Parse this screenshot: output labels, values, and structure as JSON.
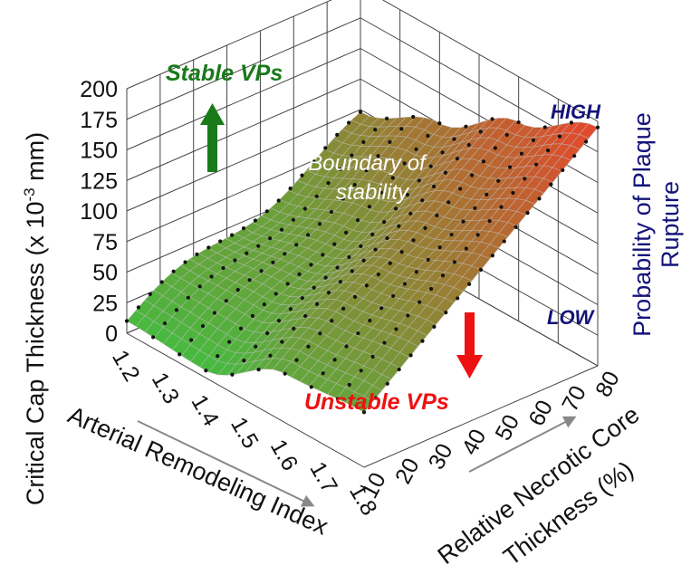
{
  "chart_data": {
    "type": "surface",
    "z_axis": {
      "label_main": "Critical Cap Thickness (x 10",
      "label_exp": "-3",
      "label_unit": " mm)",
      "ticks": [
        "0",
        "25",
        "50",
        "75",
        "100",
        "125",
        "150",
        "175",
        "200"
      ],
      "range": [
        0,
        200
      ]
    },
    "x_axis": {
      "label": "Arterial Remodeling Index",
      "ticks": [
        "1.2",
        "1.3",
        "1.4",
        "1.5",
        "1.6",
        "1.7",
        "1.8"
      ],
      "range": [
        1.2,
        1.8
      ]
    },
    "y_axis": {
      "label_line1": "Relative Necrotic Core",
      "label_line2": "Thickness (%)",
      "ticks": [
        "10",
        "20",
        "30",
        "40",
        "50",
        "60",
        "70",
        "80"
      ],
      "range": [
        10,
        80
      ]
    },
    "annotations": {
      "stable": "Stable VPs",
      "unstable": "Unstable VPs",
      "boundary_line1": "Boundary of",
      "boundary_line2": "stability",
      "high": "HIGH",
      "low": "LOW",
      "probability_line1": "Probability of Plaque",
      "probability_line2": "Rupture"
    },
    "surface_samples": {
      "description_free": true,
      "remodeling_index": [
        1.2,
        1.4,
        1.6,
        1.8
      ],
      "necrotic_core": [
        10,
        80
      ],
      "thickness": [
        [
          10,
          90
        ],
        [
          6,
          120
        ],
        [
          40,
          160
        ],
        [
          45,
          195
        ]
      ]
    },
    "colors": {
      "surface_low": "#3fbf3f",
      "surface_high": "#e24a2c",
      "stable_arrow": "#1a7a1a",
      "unstable_arrow": "#ee1111",
      "level_text": "#13137a"
    }
  }
}
